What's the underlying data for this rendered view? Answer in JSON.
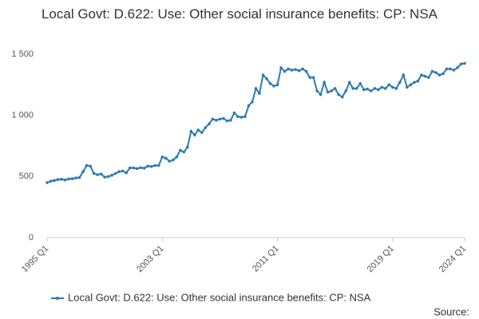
{
  "chart_data": {
    "type": "line",
    "title": "Local Govt: D.622: Use: Other social insurance benefits: CP: NSA",
    "source": "Source:",
    "categories": [
      "1995 Q1",
      null,
      null,
      null,
      null,
      null,
      null,
      null,
      null,
      null,
      null,
      null,
      null,
      null,
      null,
      null,
      null,
      null,
      null,
      null,
      null,
      null,
      null,
      null,
      null,
      null,
      null,
      null,
      null,
      null,
      null,
      null,
      "2003 Q1",
      null,
      null,
      null,
      null,
      null,
      null,
      null,
      null,
      null,
      null,
      null,
      null,
      null,
      null,
      null,
      null,
      null,
      null,
      null,
      null,
      null,
      null,
      null,
      null,
      null,
      null,
      null,
      null,
      null,
      null,
      null,
      "2011 Q1",
      null,
      null,
      null,
      null,
      null,
      null,
      null,
      null,
      null,
      null,
      null,
      null,
      null,
      null,
      null,
      null,
      null,
      null,
      null,
      null,
      null,
      null,
      null,
      null,
      null,
      null,
      null,
      null,
      null,
      null,
      null,
      "2019 Q1",
      null,
      null,
      null,
      null,
      null,
      null,
      null,
      null,
      null,
      null,
      null,
      null,
      null,
      null,
      null,
      null,
      null,
      null,
      null,
      "2024 Q1"
    ],
    "series": [
      {
        "name": "Local Govt: D.622: Use: Other social insurance benefits: CP: NSA",
        "color": "#2b7bb3",
        "values": [
          450,
          462,
          468,
          475,
          478,
          472,
          480,
          482,
          488,
          492,
          540,
          590,
          585,
          525,
          515,
          520,
          495,
          500,
          510,
          525,
          540,
          545,
          530,
          570,
          570,
          565,
          572,
          568,
          585,
          582,
          590,
          590,
          660,
          650,
          625,
          635,
          660,
          715,
          700,
          740,
          870,
          840,
          880,
          860,
          900,
          930,
          970,
          960,
          970,
          975,
          955,
          960,
          1020,
          990,
          985,
          990,
          1080,
          1110,
          1220,
          1180,
          1330,
          1300,
          1260,
          1240,
          1250,
          1390,
          1360,
          1380,
          1370,
          1375,
          1365,
          1380,
          1360,
          1310,
          1310,
          1200,
          1170,
          1270,
          1190,
          1200,
          1220,
          1170,
          1150,
          1200,
          1270,
          1220,
          1220,
          1260,
          1210,
          1215,
          1200,
          1220,
          1210,
          1230,
          1220,
          1250,
          1230,
          1220,
          1270,
          1330,
          1230,
          1250,
          1270,
          1280,
          1330,
          1320,
          1310,
          1360,
          1350,
          1330,
          1340,
          1380,
          1380,
          1370,
          1390,
          1420,
          1425
        ]
      }
    ],
    "ylim": [
      0,
      1500
    ],
    "yticks": [
      0,
      500,
      {
        "value": 1000,
        "label": "1 000"
      },
      {
        "value": 1500,
        "label": "1 500"
      }
    ],
    "grid": false
  }
}
